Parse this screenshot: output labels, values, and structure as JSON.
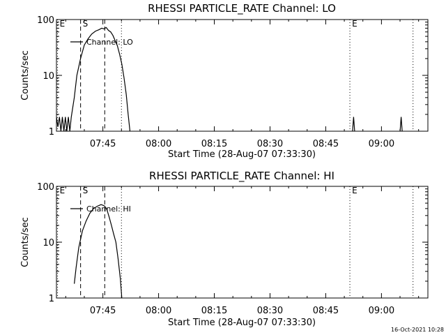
{
  "footer_timestamp": "16-Oct-2021 10:28",
  "chart_data": [
    {
      "type": "line",
      "title": "RHESSI PARTICLE_RATE Channel: LO",
      "xlabel": "Start Time (28-Aug-07 07:33:30)",
      "ylabel": "Counts/sec",
      "x_range_minutes": [
        0,
        100
      ],
      "ylim": [
        1,
        100
      ],
      "y_scale": "log",
      "x_ticks": [
        {
          "t": 12.5,
          "label": "07:45"
        },
        {
          "t": 27.5,
          "label": "08:00"
        },
        {
          "t": 42.5,
          "label": "08:15"
        },
        {
          "t": 57.5,
          "label": "08:30"
        },
        {
          "t": 72.5,
          "label": "08:45"
        },
        {
          "t": 87.5,
          "label": "09:00"
        }
      ],
      "y_ticks": [
        {
          "v": 1,
          "label": "1"
        },
        {
          "v": 10,
          "label": "10"
        },
        {
          "v": 100,
          "label": "100"
        }
      ],
      "legend": "Channel: LO",
      "series": [
        {
          "name": "Channel: LO",
          "points": [
            [
              0.0,
              1.8
            ],
            [
              0.4,
              1.2
            ],
            [
              0.8,
              1.8
            ],
            [
              1.2,
              1.0
            ],
            [
              1.6,
              1.8
            ],
            [
              2.0,
              1.0
            ],
            [
              2.4,
              1.8
            ],
            [
              2.8,
              1.0
            ],
            [
              3.2,
              1.8
            ],
            [
              3.6,
              1.0
            ],
            [
              4.0,
              1.8
            ],
            [
              4.8,
              4.0
            ],
            [
              5.5,
              10
            ],
            [
              6.5,
              20
            ],
            [
              7.5,
              35
            ],
            [
              8.5,
              45
            ],
            [
              9.5,
              55
            ],
            [
              10.5,
              62
            ],
            [
              11.5,
              66
            ],
            [
              12.2,
              70
            ],
            [
              12.8,
              68
            ],
            [
              13.4,
              72
            ],
            [
              14.0,
              64
            ],
            [
              14.6,
              60
            ],
            [
              15.2,
              52
            ],
            [
              15.8,
              42
            ],
            [
              16.4,
              34
            ],
            [
              17.0,
              24
            ],
            [
              17.6,
              16
            ],
            [
              18.2,
              9
            ],
            [
              18.8,
              4.5
            ],
            [
              19.3,
              2
            ],
            [
              19.8,
              1.0
            ]
          ],
          "spikes": [
            {
              "t": 80.0,
              "peak": 1.8
            },
            {
              "t": 92.8,
              "peak": 1.8
            }
          ]
        }
      ],
      "markers": [
        {
          "t": 0.3,
          "style": "dotted",
          "label": "E"
        },
        {
          "t": 6.5,
          "style": "dashed",
          "label": "S"
        },
        {
          "t": 13.0,
          "style": "dashed",
          "label": ""
        },
        {
          "t": 17.5,
          "style": "dotted",
          "label": ""
        },
        {
          "t": 79.0,
          "style": "dotted",
          "label": "E"
        },
        {
          "t": 96.0,
          "style": "dotted",
          "label": ""
        }
      ]
    },
    {
      "type": "line",
      "title": "RHESSI PARTICLE_RATE Channel: HI",
      "xlabel": "Start Time (28-Aug-07 07:33:30)",
      "ylabel": "Counts/sec",
      "x_range_minutes": [
        0,
        100
      ],
      "ylim": [
        1,
        100
      ],
      "y_scale": "log",
      "x_ticks": [
        {
          "t": 12.5,
          "label": "07:45"
        },
        {
          "t": 27.5,
          "label": "08:00"
        },
        {
          "t": 42.5,
          "label": "08:15"
        },
        {
          "t": 57.5,
          "label": "08:30"
        },
        {
          "t": 72.5,
          "label": "08:45"
        },
        {
          "t": 87.5,
          "label": "09:00"
        }
      ],
      "y_ticks": [
        {
          "v": 1,
          "label": "1"
        },
        {
          "v": 10,
          "label": "10"
        },
        {
          "v": 100,
          "label": "100"
        }
      ],
      "legend": "Channel: HI",
      "series": [
        {
          "name": "Channel: HI",
          "points": [
            [
              4.8,
              1.8
            ],
            [
              5.3,
              3.5
            ],
            [
              6.0,
              8
            ],
            [
              7.0,
              16
            ],
            [
              8.0,
              24
            ],
            [
              9.0,
              33
            ],
            [
              10.0,
              40
            ],
            [
              11.0,
              44
            ],
            [
              12.0,
              47
            ],
            [
              12.5,
              46
            ],
            [
              13.0,
              44
            ],
            [
              13.6,
              38
            ],
            [
              14.2,
              28
            ],
            [
              14.8,
              20
            ],
            [
              15.4,
              14
            ],
            [
              16.0,
              10
            ],
            [
              16.6,
              5
            ],
            [
              17.2,
              2.2
            ],
            [
              17.6,
              1.0
            ]
          ],
          "spikes": []
        }
      ],
      "markers": [
        {
          "t": 0.3,
          "style": "dotted",
          "label": "E"
        },
        {
          "t": 6.5,
          "style": "dashed",
          "label": "S"
        },
        {
          "t": 13.0,
          "style": "dashed",
          "label": ""
        },
        {
          "t": 17.5,
          "style": "dotted",
          "label": ""
        },
        {
          "t": 79.0,
          "style": "dotted",
          "label": "E"
        },
        {
          "t": 96.0,
          "style": "dotted",
          "label": ""
        }
      ]
    }
  ]
}
